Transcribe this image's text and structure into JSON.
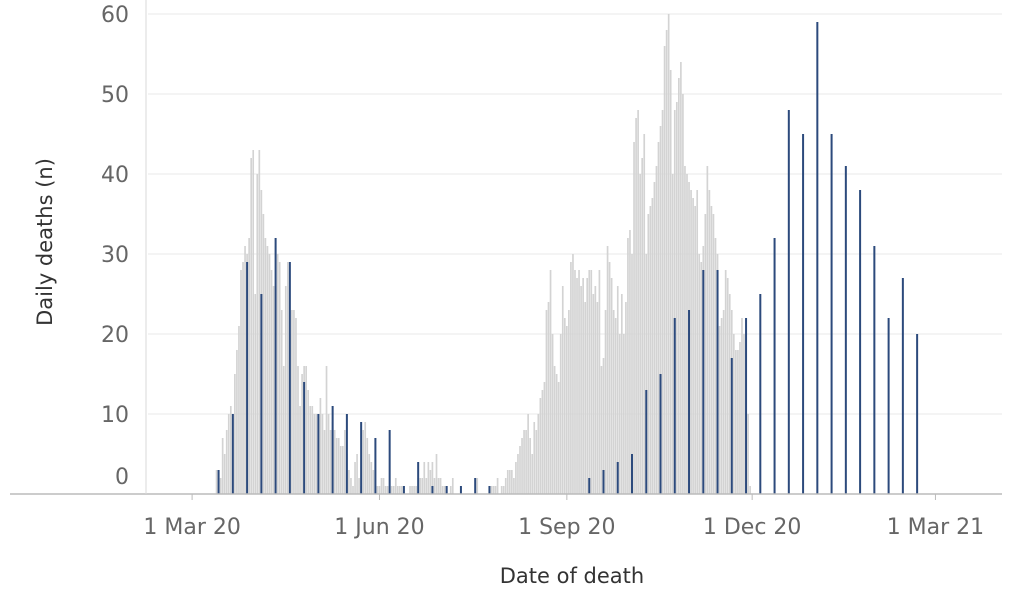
{
  "chart_data": {
    "type": "bar",
    "xlabel": "Date of death",
    "ylabel": "Daily deaths (n)",
    "ylim": [
      0,
      60
    ],
    "yticks": [
      0,
      10,
      20,
      30,
      40,
      50,
      60
    ],
    "x_start_date": "2020-02-27",
    "x_end_date": "2021-03-16",
    "xticks": [
      {
        "date": "2020-03-01",
        "label": "1 Mar 20"
      },
      {
        "date": "2020-06-01",
        "label": "1 Jun 20"
      },
      {
        "date": "2020-09-01",
        "label": "1 Sep 20"
      },
      {
        "date": "2020-12-01",
        "label": "1 Dec 20"
      },
      {
        "date": "2021-03-01",
        "label": "1 Mar 21"
      }
    ],
    "grid": true,
    "colors": {
      "daily": "#d3d3d3",
      "weekly": "#2c4a7c",
      "grid": "#e8e8e8",
      "axis": "#bbbbbb"
    },
    "series": [
      {
        "style": "light grey bars (every day)",
        "start_date": "2020-02-27",
        "values": [
          0,
          0,
          0,
          0,
          0,
          0,
          0,
          0,
          0,
          0,
          0,
          0,
          0,
          0,
          0,
          3,
          3,
          2,
          7,
          5,
          8,
          10,
          11,
          10,
          15,
          18,
          21,
          28,
          29,
          31,
          30,
          32,
          42,
          43,
          25,
          40,
          43,
          38,
          35,
          32,
          31,
          30,
          28,
          26,
          31,
          30,
          29,
          23,
          16,
          26,
          29,
          20,
          23,
          23,
          22,
          16,
          11,
          15,
          16,
          16,
          13,
          11,
          11,
          10,
          10,
          10,
          12,
          10,
          8,
          16,
          10,
          8,
          9,
          8,
          7,
          7,
          6,
          6,
          8,
          5,
          3,
          2,
          1,
          4,
          5,
          2,
          1,
          8,
          9,
          7,
          5,
          4,
          3,
          3,
          1,
          1,
          2,
          2,
          1,
          1,
          0,
          1,
          1,
          2,
          1,
          1,
          1,
          1,
          0,
          0,
          1,
          1,
          1,
          1,
          2,
          2,
          2,
          4,
          2,
          4,
          3,
          4,
          2,
          5,
          2,
          2,
          1,
          1,
          1,
          0,
          1,
          2,
          0,
          0,
          0,
          0,
          0,
          0,
          0,
          0,
          0,
          0,
          0,
          2,
          0,
          0,
          0,
          0,
          0,
          0,
          1,
          1,
          1,
          2,
          0,
          1,
          1,
          2,
          3,
          3,
          3,
          2,
          4,
          5,
          6,
          7,
          8,
          8,
          10,
          7,
          5,
          9,
          8,
          10,
          12,
          13,
          14,
          23,
          24,
          28,
          20,
          16,
          15,
          14,
          20,
          26,
          22,
          21,
          23,
          29,
          30,
          28,
          27,
          28,
          26,
          27,
          24,
          27,
          28,
          28,
          25,
          26,
          24,
          28,
          16,
          17,
          23,
          31,
          29,
          27,
          23,
          22,
          26,
          20,
          25,
          20,
          24,
          32,
          33,
          30,
          44,
          47,
          48,
          40,
          42,
          45,
          30,
          35,
          36,
          37,
          39,
          41,
          44,
          46,
          48,
          56,
          58,
          60,
          53,
          40,
          48,
          49,
          52,
          54,
          50,
          41,
          40,
          39,
          38,
          37,
          36,
          38,
          30,
          29,
          31,
          35,
          41,
          38,
          36,
          35,
          32,
          30,
          21,
          22,
          23,
          28,
          27,
          25,
          23,
          20,
          18,
          18,
          19,
          22,
          20,
          11,
          10,
          1,
          0,
          0,
          0,
          0,
          0,
          0,
          0,
          0,
          0,
          0,
          0,
          0,
          0,
          0
        ]
      },
      {
        "style": "dark blue bars (weekly markers)",
        "start_date": "2020-03-14",
        "interval_days": 7,
        "values": [
          3,
          10,
          29,
          25,
          32,
          29,
          14,
          10,
          11,
          10,
          9,
          7,
          8,
          1,
          4,
          1,
          1,
          1,
          2,
          1,
          0,
          0,
          0,
          0,
          0,
          0,
          2,
          3,
          4,
          5,
          13,
          15,
          22,
          23,
          28,
          28,
          17,
          22,
          25,
          32,
          48,
          45,
          59,
          45,
          41,
          38,
          31,
          22,
          27,
          20
        ]
      }
    ]
  }
}
